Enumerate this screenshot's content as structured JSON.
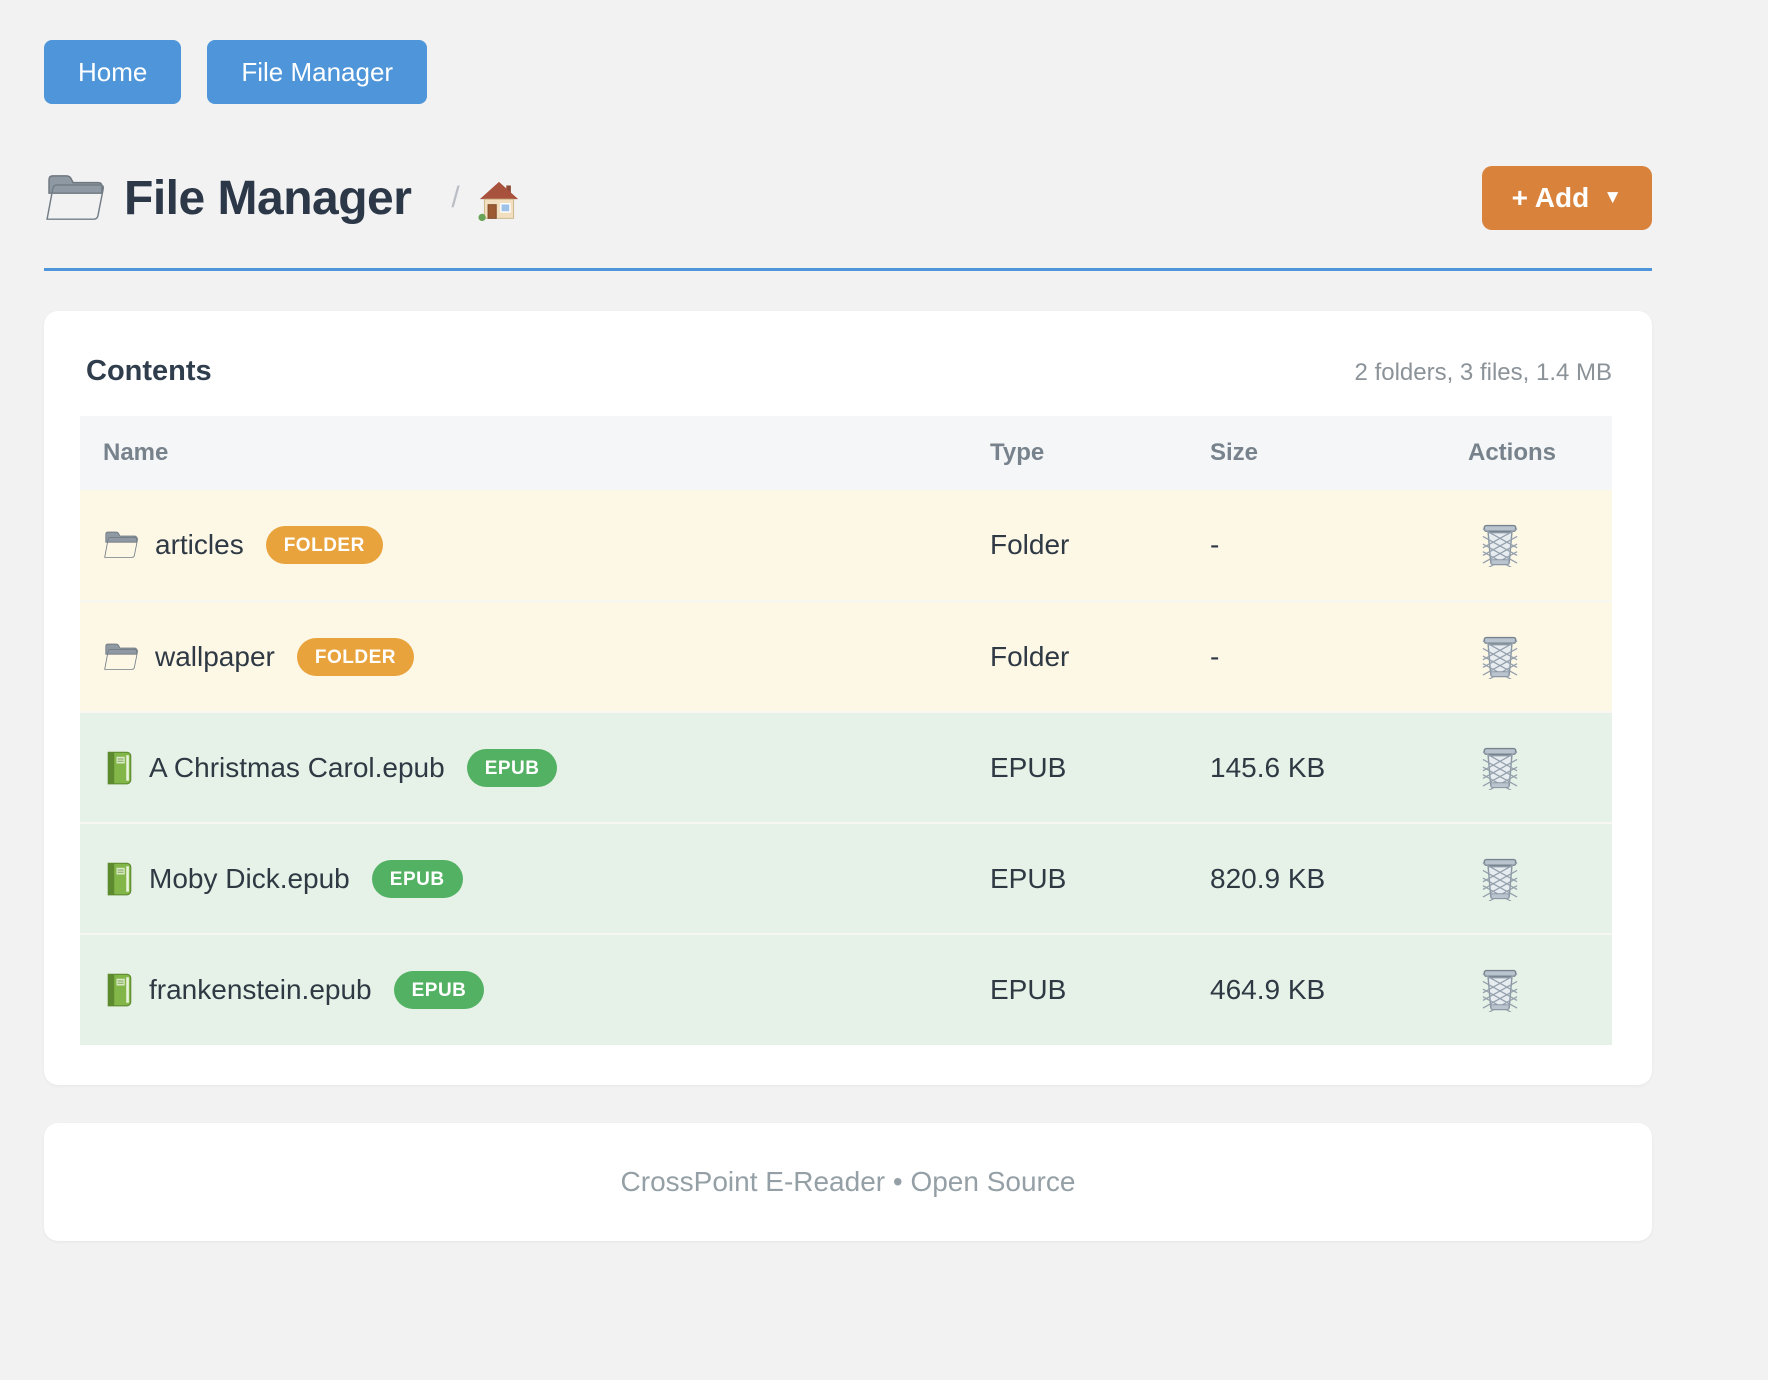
{
  "nav": {
    "buttons": [
      {
        "label": "Home"
      },
      {
        "label": "File Manager"
      }
    ]
  },
  "header": {
    "title": "File Manager",
    "title_icon": "folder-icon",
    "breadcrumb_separator": "/",
    "breadcrumb_home_icon": "house-icon",
    "add_button": {
      "label": "+ Add",
      "caret": "▼"
    }
  },
  "contents": {
    "heading": "Contents",
    "summary": "2 folders, 3 files, 1.4 MB",
    "table": {
      "columns": [
        "Name",
        "Type",
        "Size",
        "Actions"
      ],
      "rows": [
        {
          "name": "articles",
          "badge": "FOLDER",
          "type": "Folder",
          "size": "-",
          "kind": "folder",
          "icon": "folder-icon",
          "action_icon": "trash-icon"
        },
        {
          "name": "wallpaper",
          "badge": "FOLDER",
          "type": "Folder",
          "size": "-",
          "kind": "folder",
          "icon": "folder-icon",
          "action_icon": "trash-icon"
        },
        {
          "name": "A Christmas Carol.epub",
          "badge": "EPUB",
          "type": "EPUB",
          "size": "145.6 KB",
          "kind": "epub",
          "icon": "book-icon",
          "action_icon": "trash-icon"
        },
        {
          "name": "Moby Dick.epub",
          "badge": "EPUB",
          "type": "EPUB",
          "size": "820.9 KB",
          "kind": "epub",
          "icon": "book-icon",
          "action_icon": "trash-icon"
        },
        {
          "name": "frankenstein.epub",
          "badge": "EPUB",
          "type": "EPUB",
          "size": "464.9 KB",
          "kind": "epub",
          "icon": "book-icon",
          "action_icon": "trash-icon"
        }
      ]
    }
  },
  "footer": {
    "text": "CrossPoint E-Reader • Open Source"
  },
  "colors": {
    "page_bg": "#f2f2f3",
    "accent_blue": "#4e95d9",
    "accent_orange": "#d9823c",
    "folder_badge": "#e9a33d",
    "epub_badge": "#53b163",
    "row_folder_bg": "#fdf7e6",
    "row_epub_bg": "#e6f2e7"
  }
}
